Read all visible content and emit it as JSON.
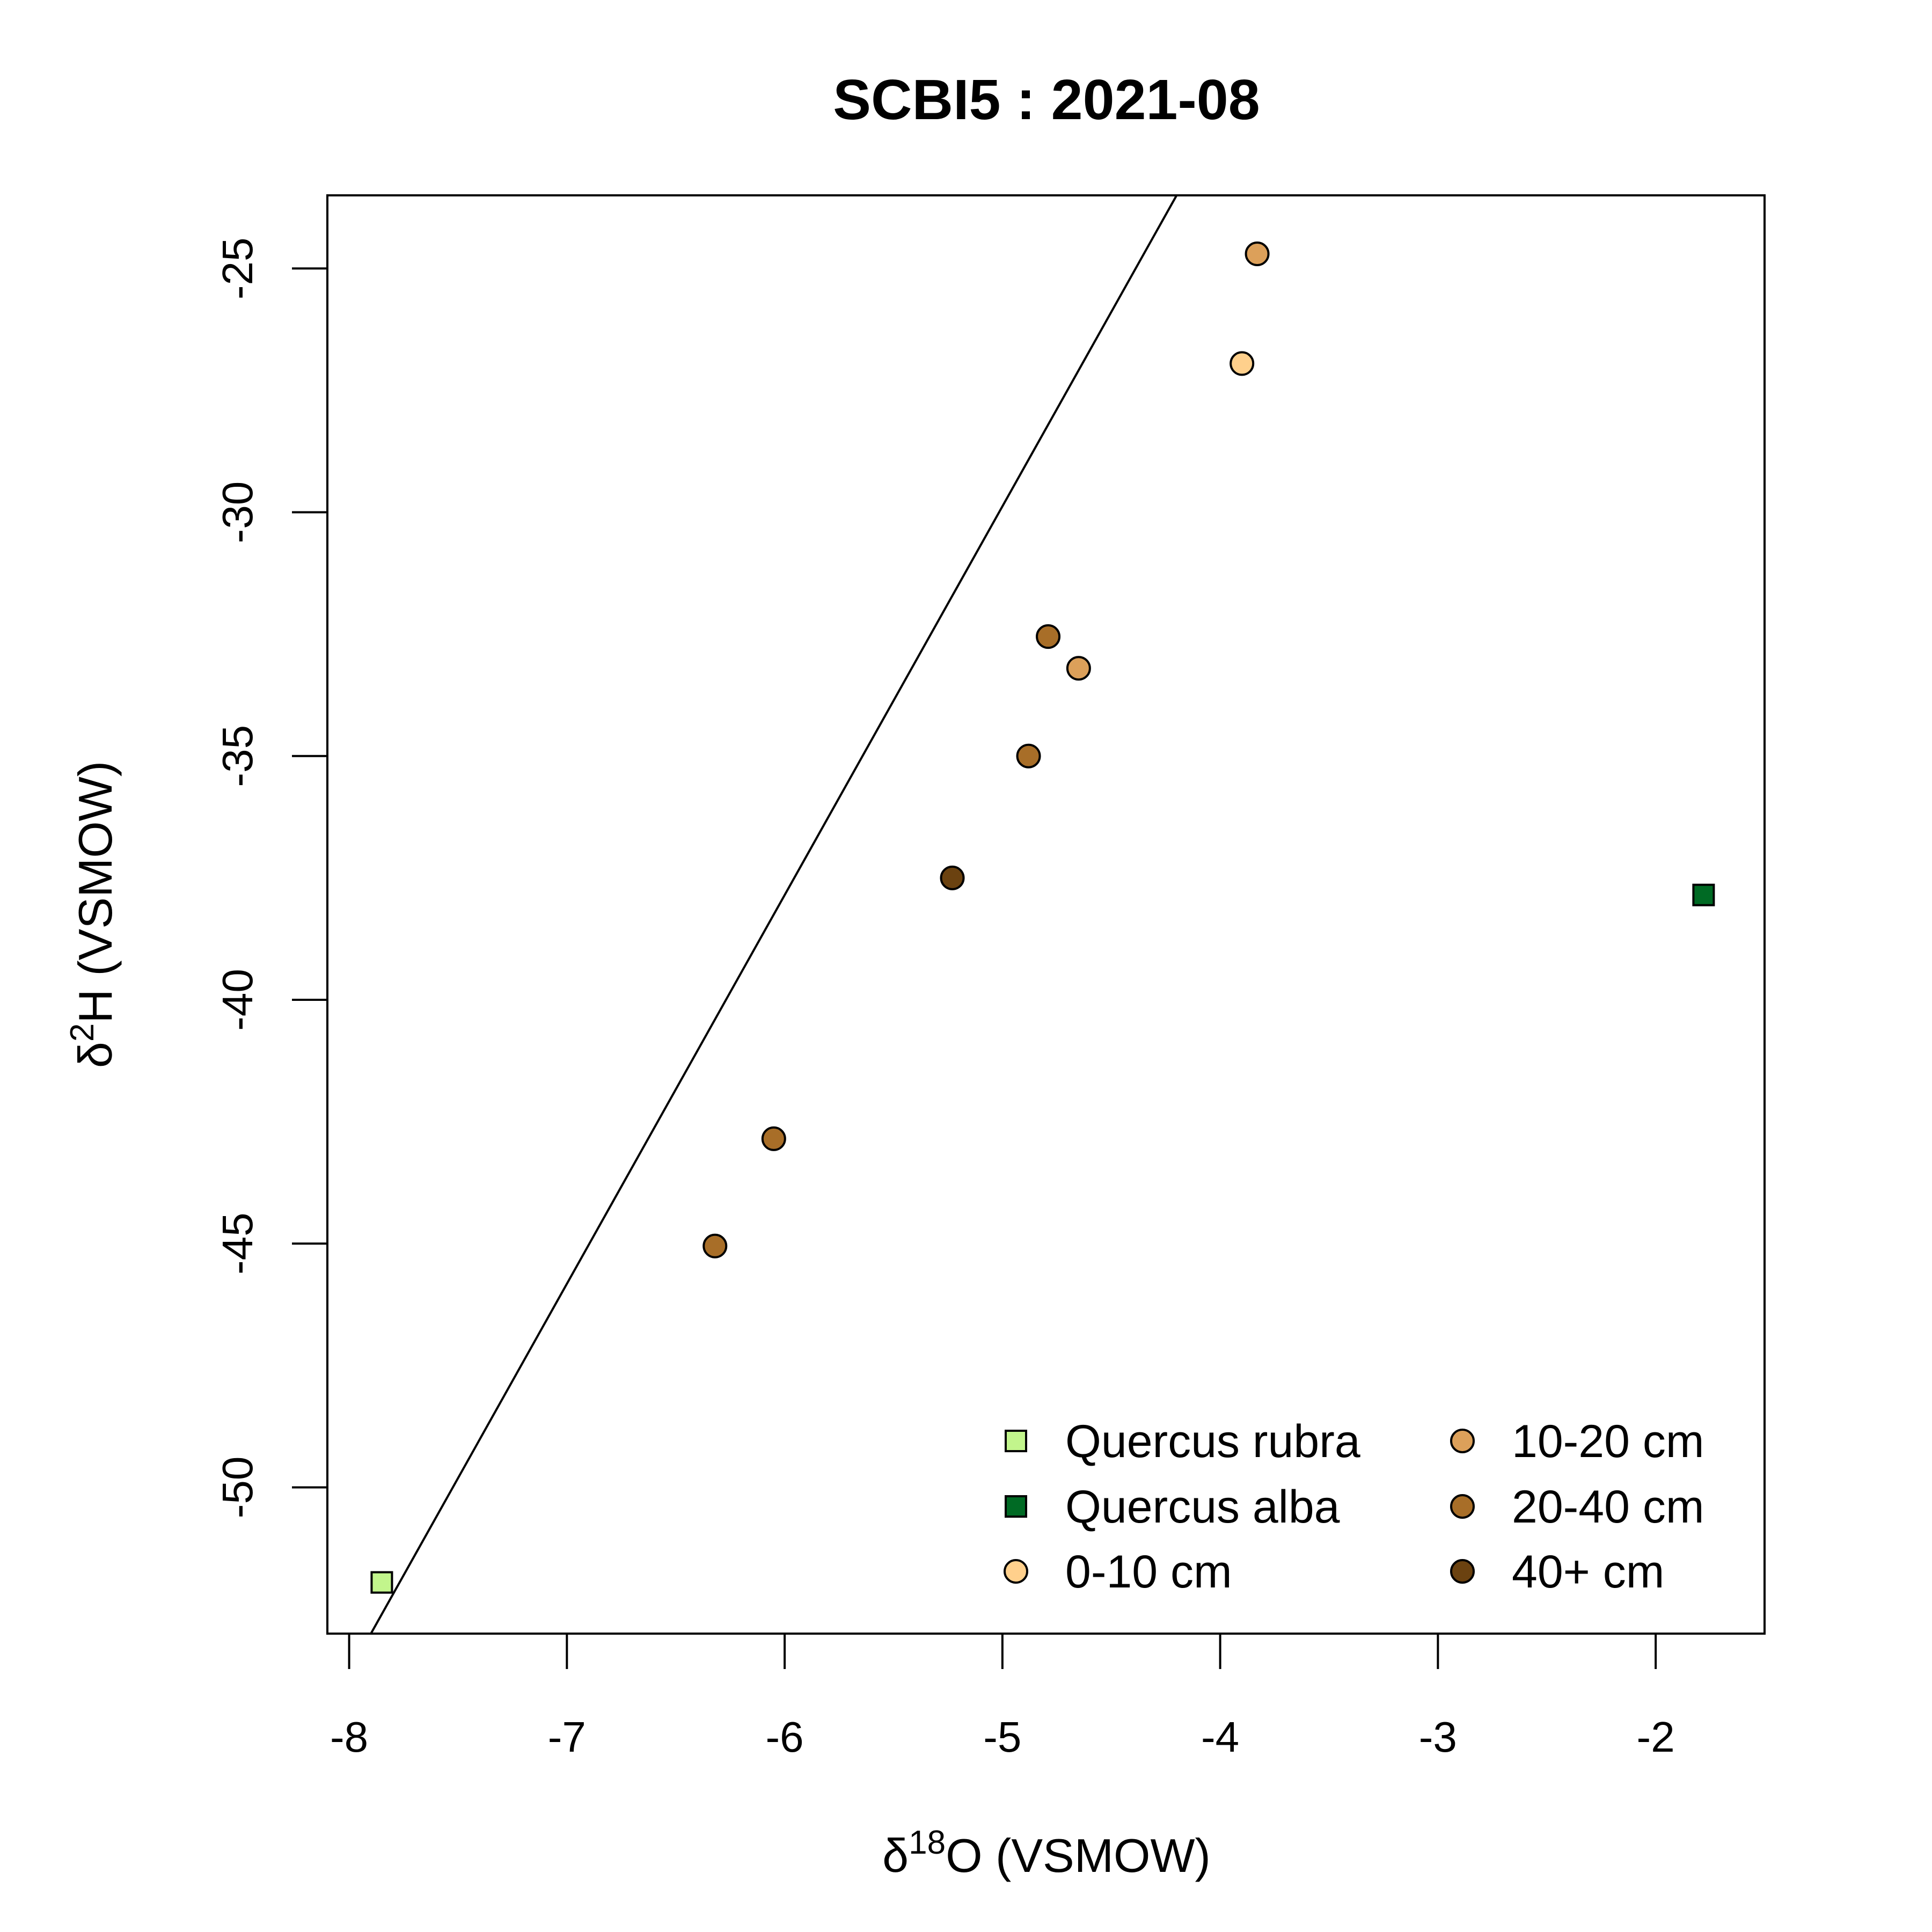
{
  "chart_data": {
    "type": "scatter",
    "title": "SCBI5 : 2021-08",
    "xlabel": {
      "prefix": "δ",
      "sup": "18",
      "suffix": "O (VSMOW)"
    },
    "ylabel": {
      "prefix": "δ",
      "sup": "2",
      "suffix": "H (VSMOW)"
    },
    "xlim": [
      -8.1,
      -1.5
    ],
    "ylim": [
      -53,
      -23.5
    ],
    "xticks": [
      -8,
      -7,
      -6,
      -5,
      -4,
      -3,
      -2
    ],
    "yticks": [
      -25,
      -30,
      -35,
      -40,
      -45,
      -50
    ],
    "grid": false,
    "reference_line": {
      "x": [
        -7.9,
        -4.2
      ],
      "y": [
        -53,
        -23.5
      ]
    },
    "legend_position": "bottom-right",
    "series": [
      {
        "name": "Quercus rubra",
        "marker": "square",
        "color": "#c2f58c",
        "points": [
          {
            "x": -7.85,
            "y": -51.95
          }
        ]
      },
      {
        "name": "Quercus alba",
        "marker": "square",
        "color": "#006a24",
        "points": [
          {
            "x": -1.78,
            "y": -37.85
          }
        ]
      },
      {
        "name": "0-10 cm",
        "marker": "circle",
        "color": "#ffd08c",
        "points": [
          {
            "x": -3.9,
            "y": -26.95
          }
        ]
      },
      {
        "name": "10-20 cm",
        "marker": "circle",
        "color": "#dca05a",
        "points": [
          {
            "x": -3.83,
            "y": -24.7
          },
          {
            "x": -4.65,
            "y": -33.2
          }
        ]
      },
      {
        "name": "20-40 cm",
        "marker": "circle",
        "color": "#a86e28",
        "points": [
          {
            "x": -4.79,
            "y": -32.55
          },
          {
            "x": -4.88,
            "y": -35.0
          },
          {
            "x": -6.05,
            "y": -42.85
          },
          {
            "x": -6.32,
            "y": -45.05
          }
        ]
      },
      {
        "name": "40+ cm",
        "marker": "circle",
        "color": "#6b4210",
        "points": [
          {
            "x": -5.23,
            "y": -37.5
          }
        ]
      }
    ]
  }
}
